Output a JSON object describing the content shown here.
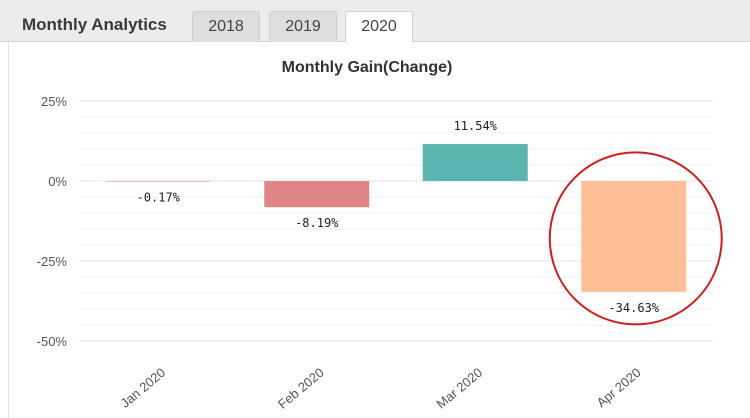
{
  "header": {
    "title": "Monthly Analytics",
    "tabs": [
      {
        "label": "2018",
        "active": false
      },
      {
        "label": "2019",
        "active": false
      },
      {
        "label": "2020",
        "active": true
      }
    ]
  },
  "chart_data": {
    "type": "bar",
    "title": "Monthly Gain(Change)",
    "categories": [
      "Jan 2020",
      "Feb 2020",
      "Mar 2020",
      "Apr 2020"
    ],
    "values": [
      -0.17,
      -8.19,
      11.54,
      -34.63
    ],
    "data_labels": [
      "-0.17%",
      "-8.19%",
      "11.54%",
      "-34.63%"
    ],
    "colors": [
      "#e08585",
      "#e08585",
      "#5ab5b0",
      "#ffbe96"
    ],
    "ylim": [
      -50,
      25
    ],
    "yticks": [
      25,
      0,
      -25,
      -50
    ],
    "ytick_labels": [
      "25%",
      "0%",
      "-25%",
      "-50%"
    ],
    "grid": true,
    "annotation": {
      "type": "circle",
      "target": "Apr 2020",
      "color": "#cc1f1f"
    }
  }
}
